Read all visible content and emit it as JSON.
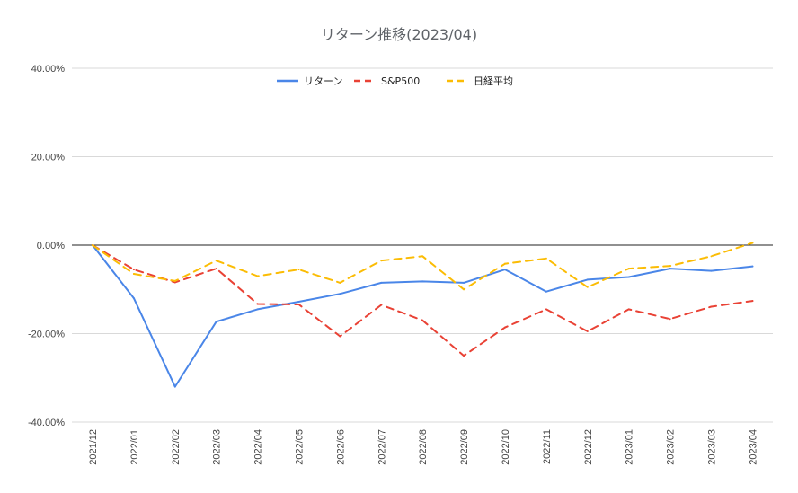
{
  "chart_data": {
    "type": "line",
    "title": "リターン推移(2023/04)",
    "xlabel": "",
    "ylabel": "",
    "ylim": [
      -40,
      40
    ],
    "yticks": [
      40,
      20,
      0,
      -20,
      -40
    ],
    "ytick_labels": [
      "40.00%",
      "20.00%",
      "0.00%",
      "-20.00%",
      "-40.00%"
    ],
    "grid": true,
    "legend_position": "top",
    "categories": [
      "2021/12",
      "2022/01",
      "2022/02",
      "2022/03",
      "2022/04",
      "2022/05",
      "2022/06",
      "2022/07",
      "2022/08",
      "2022/09",
      "2022/10",
      "2022/11",
      "2022/12",
      "2023/01",
      "2023/02",
      "2023/03",
      "2023/04"
    ],
    "series": [
      {
        "name": "リターン",
        "color": "#4a86e8",
        "dashed": false,
        "values": [
          0,
          -12,
          -32,
          -17.3,
          -14.5,
          -12.8,
          -11,
          -8.5,
          -8.2,
          -8.5,
          -5.5,
          -10.5,
          -7.8,
          -7.2,
          -5.3,
          -5.8,
          -4.8
        ]
      },
      {
        "name": "S&P500",
        "color": "#e94235",
        "dashed": true,
        "values": [
          0,
          -5.5,
          -8.4,
          -5.3,
          -13.3,
          -13.4,
          -20.6,
          -13.5,
          -17,
          -25,
          -18.6,
          -14.5,
          -19.5,
          -14.5,
          -16.7,
          -13.9,
          -12.6
        ]
      },
      {
        "name": "日経平均",
        "color": "#fbbc04",
        "dashed": true,
        "values": [
          0,
          -6.5,
          -8.1,
          -3.5,
          -7,
          -5.5,
          -8.5,
          -3.5,
          -2.5,
          -10,
          -4.2,
          -3,
          -9.5,
          -5.3,
          -4.7,
          -2.5,
          0.5
        ]
      }
    ]
  }
}
